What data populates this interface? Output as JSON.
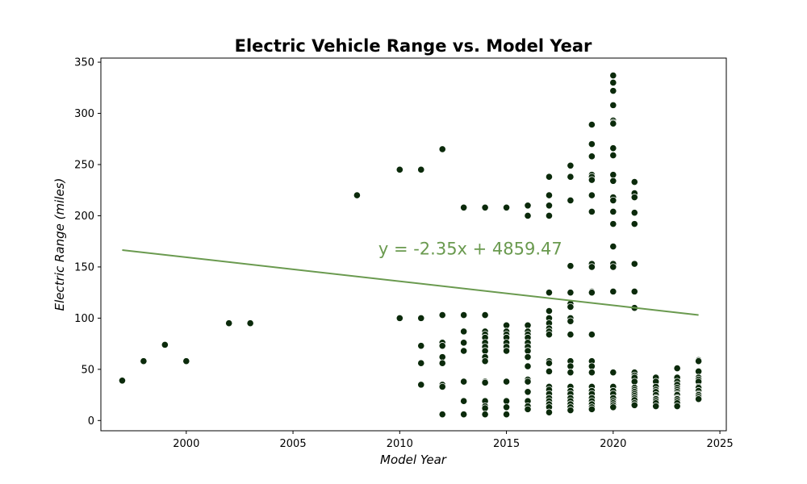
{
  "chart_data": {
    "type": "scatter",
    "title": "Electric Vehicle Range vs. Model Year",
    "xlabel": "Model Year",
    "ylabel": "Electric Range (miles)",
    "xlim": [
      1996,
      2025.3
    ],
    "ylim": [
      -10,
      354
    ],
    "x_ticks": [
      2000,
      2005,
      2010,
      2015,
      2020,
      2025
    ],
    "y_ticks": [
      0,
      50,
      100,
      150,
      200,
      250,
      300,
      350
    ],
    "grid": false,
    "marker_color": "#0b2a0b",
    "marker_edge_color": "#ffffff",
    "trend_color": "#6a9a4f",
    "trendline": {
      "slope": -2.35,
      "intercept": 4859.47,
      "x_range": [
        1997,
        2024
      ]
    },
    "annotation": {
      "text": "y = -2.35x + 4859.47",
      "x": 2009,
      "y": 162
    },
    "points": [
      [
        1997,
        39
      ],
      [
        1998,
        58
      ],
      [
        1999,
        74
      ],
      [
        2000,
        58
      ],
      [
        2002,
        95
      ],
      [
        2003,
        95
      ],
      [
        2008,
        220
      ],
      [
        2010,
        245
      ],
      [
        2010,
        100
      ],
      [
        2011,
        245
      ],
      [
        2011,
        100
      ],
      [
        2011,
        73
      ],
      [
        2011,
        56
      ],
      [
        2011,
        35
      ],
      [
        2012,
        265
      ],
      [
        2012,
        103
      ],
      [
        2012,
        76
      ],
      [
        2012,
        73
      ],
      [
        2012,
        62
      ],
      [
        2012,
        56
      ],
      [
        2012,
        35
      ],
      [
        2012,
        33
      ],
      [
        2012,
        6
      ],
      [
        2013,
        208
      ],
      [
        2013,
        103
      ],
      [
        2013,
        87
      ],
      [
        2013,
        76
      ],
      [
        2013,
        68
      ],
      [
        2013,
        38
      ],
      [
        2013,
        19
      ],
      [
        2013,
        6
      ],
      [
        2014,
        208
      ],
      [
        2014,
        103
      ],
      [
        2014,
        87
      ],
      [
        2014,
        84
      ],
      [
        2014,
        81
      ],
      [
        2014,
        76
      ],
      [
        2014,
        72
      ],
      [
        2014,
        68
      ],
      [
        2014,
        62
      ],
      [
        2014,
        58
      ],
      [
        2014,
        38
      ],
      [
        2014,
        37
      ],
      [
        2014,
        19
      ],
      [
        2014,
        14
      ],
      [
        2014,
        12
      ],
      [
        2014,
        6
      ],
      [
        2015,
        208
      ],
      [
        2015,
        93
      ],
      [
        2015,
        87
      ],
      [
        2015,
        84
      ],
      [
        2015,
        81
      ],
      [
        2015,
        76
      ],
      [
        2015,
        72
      ],
      [
        2015,
        68
      ],
      [
        2015,
        38
      ],
      [
        2015,
        19
      ],
      [
        2015,
        13
      ],
      [
        2015,
        6
      ],
      [
        2016,
        210
      ],
      [
        2016,
        200
      ],
      [
        2016,
        93
      ],
      [
        2016,
        87
      ],
      [
        2016,
        84
      ],
      [
        2016,
        81
      ],
      [
        2016,
        76
      ],
      [
        2016,
        72
      ],
      [
        2016,
        68
      ],
      [
        2016,
        62
      ],
      [
        2016,
        53
      ],
      [
        2016,
        40
      ],
      [
        2016,
        38
      ],
      [
        2016,
        28
      ],
      [
        2016,
        19
      ],
      [
        2016,
        14
      ],
      [
        2016,
        11
      ],
      [
        2017,
        238
      ],
      [
        2017,
        220
      ],
      [
        2017,
        210
      ],
      [
        2017,
        200
      ],
      [
        2017,
        125
      ],
      [
        2017,
        107
      ],
      [
        2017,
        100
      ],
      [
        2017,
        95
      ],
      [
        2017,
        90
      ],
      [
        2017,
        87
      ],
      [
        2017,
        84
      ],
      [
        2017,
        58
      ],
      [
        2017,
        56
      ],
      [
        2017,
        48
      ],
      [
        2017,
        33
      ],
      [
        2017,
        30
      ],
      [
        2017,
        26
      ],
      [
        2017,
        22
      ],
      [
        2017,
        19
      ],
      [
        2017,
        16
      ],
      [
        2017,
        13
      ],
      [
        2017,
        8
      ],
      [
        2018,
        249
      ],
      [
        2018,
        238
      ],
      [
        2018,
        215
      ],
      [
        2018,
        151
      ],
      [
        2018,
        125
      ],
      [
        2018,
        114
      ],
      [
        2018,
        111
      ],
      [
        2018,
        100
      ],
      [
        2018,
        97
      ],
      [
        2018,
        84
      ],
      [
        2018,
        58
      ],
      [
        2018,
        53
      ],
      [
        2018,
        47
      ],
      [
        2018,
        33
      ],
      [
        2018,
        29
      ],
      [
        2018,
        26
      ],
      [
        2018,
        22
      ],
      [
        2018,
        19
      ],
      [
        2018,
        16
      ],
      [
        2018,
        13
      ],
      [
        2018,
        10
      ],
      [
        2019,
        289
      ],
      [
        2019,
        270
      ],
      [
        2019,
        258
      ],
      [
        2019,
        240
      ],
      [
        2019,
        238
      ],
      [
        2019,
        235
      ],
      [
        2019,
        220
      ],
      [
        2019,
        204
      ],
      [
        2019,
        153
      ],
      [
        2019,
        150
      ],
      [
        2019,
        126
      ],
      [
        2019,
        125
      ],
      [
        2019,
        84
      ],
      [
        2019,
        58
      ],
      [
        2019,
        53
      ],
      [
        2019,
        47
      ],
      [
        2019,
        33
      ],
      [
        2019,
        29
      ],
      [
        2019,
        26
      ],
      [
        2019,
        22
      ],
      [
        2019,
        19
      ],
      [
        2019,
        16
      ],
      [
        2019,
        13
      ],
      [
        2019,
        11
      ],
      [
        2020,
        337
      ],
      [
        2020,
        330
      ],
      [
        2020,
        322
      ],
      [
        2020,
        308
      ],
      [
        2020,
        293
      ],
      [
        2020,
        291
      ],
      [
        2020,
        290
      ],
      [
        2020,
        266
      ],
      [
        2020,
        259
      ],
      [
        2020,
        240
      ],
      [
        2020,
        234
      ],
      [
        2020,
        218
      ],
      [
        2020,
        215
      ],
      [
        2020,
        204
      ],
      [
        2020,
        192
      ],
      [
        2020,
        170
      ],
      [
        2020,
        153
      ],
      [
        2020,
        150
      ],
      [
        2020,
        126
      ],
      [
        2020,
        47
      ],
      [
        2020,
        33
      ],
      [
        2020,
        29
      ],
      [
        2020,
        26
      ],
      [
        2020,
        22
      ],
      [
        2020,
        19
      ],
      [
        2020,
        17
      ],
      [
        2020,
        15
      ],
      [
        2020,
        13
      ],
      [
        2021,
        233
      ],
      [
        2021,
        222
      ],
      [
        2021,
        218
      ],
      [
        2021,
        203
      ],
      [
        2021,
        192
      ],
      [
        2021,
        153
      ],
      [
        2021,
        126
      ],
      [
        2021,
        110
      ],
      [
        2021,
        47
      ],
      [
        2021,
        44
      ],
      [
        2021,
        42
      ],
      [
        2021,
        38
      ],
      [
        2021,
        32
      ],
      [
        2021,
        30
      ],
      [
        2021,
        28
      ],
      [
        2021,
        26
      ],
      [
        2021,
        24
      ],
      [
        2021,
        22
      ],
      [
        2021,
        20
      ],
      [
        2021,
        17
      ],
      [
        2021,
        15
      ],
      [
        2022,
        42
      ],
      [
        2022,
        38
      ],
      [
        2022,
        33
      ],
      [
        2022,
        30
      ],
      [
        2022,
        28
      ],
      [
        2022,
        25
      ],
      [
        2022,
        22
      ],
      [
        2022,
        21
      ],
      [
        2022,
        19
      ],
      [
        2022,
        17
      ],
      [
        2022,
        14
      ],
      [
        2023,
        51
      ],
      [
        2023,
        42
      ],
      [
        2023,
        38
      ],
      [
        2023,
        35
      ],
      [
        2023,
        32
      ],
      [
        2023,
        30
      ],
      [
        2023,
        28
      ],
      [
        2023,
        26
      ],
      [
        2023,
        25
      ],
      [
        2023,
        22
      ],
      [
        2023,
        21
      ],
      [
        2023,
        19
      ],
      [
        2023,
        17
      ],
      [
        2023,
        14
      ],
      [
        2024,
        59
      ],
      [
        2024,
        58
      ],
      [
        2024,
        48
      ],
      [
        2024,
        42
      ],
      [
        2024,
        40
      ],
      [
        2024,
        38
      ],
      [
        2024,
        33
      ],
      [
        2024,
        32
      ],
      [
        2024,
        29
      ],
      [
        2024,
        26
      ],
      [
        2024,
        25
      ],
      [
        2024,
        23
      ],
      [
        2024,
        21
      ]
    ]
  }
}
